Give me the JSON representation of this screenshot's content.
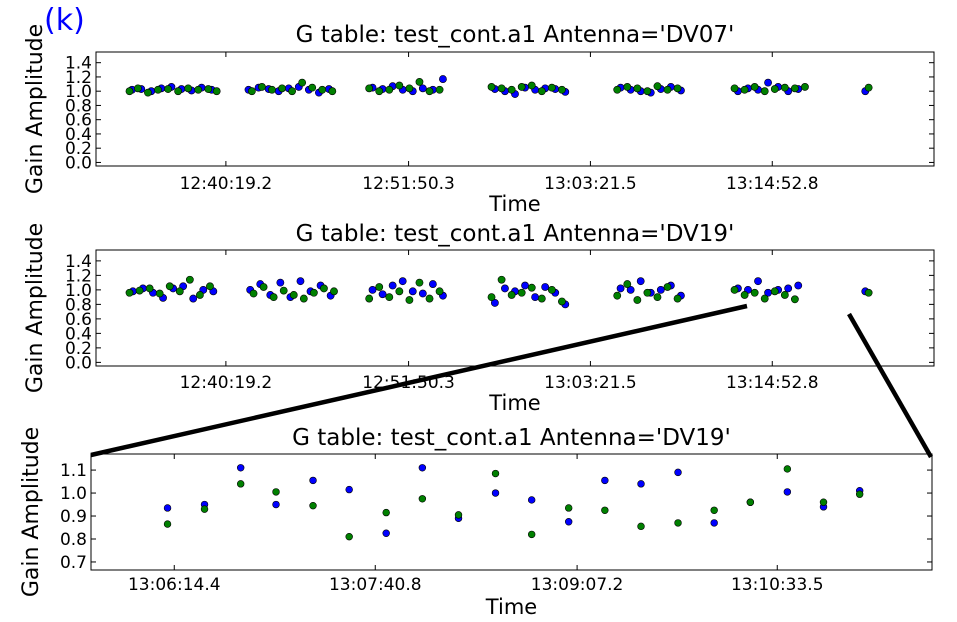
{
  "panel_label": "(k)",
  "colors": {
    "series_a": "#0000ff",
    "series_b": "#008000",
    "axes": "#000000"
  },
  "chart_data": [
    {
      "type": "scatter",
      "title": "G table: test_cont.a1       Antenna='DV07'",
      "xlabel": "Time",
      "ylabel": "Gain Amplitude",
      "xlim": [
        0,
        100
      ],
      "ylim": [
        -0.05,
        1.55
      ],
      "yticks": [
        "0.0",
        "0.2",
        "0.4",
        "0.6",
        "0.8",
        "1.0",
        "1.2",
        "1.4"
      ],
      "ytick_values": [
        0,
        0.2,
        0.4,
        0.6,
        0.8,
        1.0,
        1.2,
        1.4
      ],
      "xticks": [
        {
          "label": "12:40:19.2",
          "x": 15.5
        },
        {
          "label": "12:51:50.3",
          "x": 37.3
        },
        {
          "label": "13:03:21.5",
          "x": 59.0
        },
        {
          "label": "13:14:52.8",
          "x": 80.7
        }
      ],
      "grid": false,
      "series": [
        {
          "values": [
            [
              4.3,
              1.02
            ],
            [
              5.4,
              1.03
            ],
            [
              6.6,
              1.0
            ],
            [
              7.8,
              1.04
            ],
            [
              9.0,
              1.06
            ],
            [
              10.2,
              1.03
            ],
            [
              11.4,
              1.01
            ],
            [
              12.6,
              1.05
            ],
            [
              13.8,
              1.02
            ],
            [
              18.2,
              1.02
            ],
            [
              19.4,
              1.05
            ],
            [
              20.6,
              1.03
            ],
            [
              21.8,
              1.0
            ],
            [
              23.0,
              1.04
            ],
            [
              24.2,
              1.06
            ],
            [
              25.4,
              1.02
            ],
            [
              26.6,
              0.98
            ],
            [
              27.8,
              1.03
            ],
            [
              33.0,
              1.05
            ],
            [
              34.2,
              1.03
            ],
            [
              35.4,
              1.07
            ],
            [
              36.6,
              1.02
            ],
            [
              37.8,
              1.0
            ],
            [
              39.0,
              1.04
            ],
            [
              40.2,
              1.02
            ],
            [
              41.4,
              1.17
            ],
            [
              47.6,
              1.03
            ],
            [
              48.8,
              1.0
            ],
            [
              50.0,
              0.96
            ],
            [
              51.2,
              1.05
            ],
            [
              52.4,
              1.02
            ],
            [
              53.6,
              1.04
            ],
            [
              54.8,
              1.03
            ],
            [
              56.0,
              0.99
            ],
            [
              62.6,
              1.05
            ],
            [
              63.8,
              1.02
            ],
            [
              65.0,
              1.0
            ],
            [
              66.2,
              0.98
            ],
            [
              67.4,
              1.03
            ],
            [
              68.6,
              1.06
            ],
            [
              69.8,
              1.01
            ],
            [
              76.6,
              1.0
            ],
            [
              77.8,
              1.04
            ],
            [
              79.0,
              1.02
            ],
            [
              80.2,
              1.12
            ],
            [
              81.4,
              1.06
            ],
            [
              82.6,
              1.0
            ],
            [
              83.8,
              1.03
            ],
            [
              91.8,
              1.0
            ]
          ]
        },
        {
          "values": [
            [
              4.0,
              1.0
            ],
            [
              5.0,
              1.04
            ],
            [
              6.2,
              0.98
            ],
            [
              7.4,
              1.02
            ],
            [
              8.6,
              1.03
            ],
            [
              9.8,
              1.0
            ],
            [
              11.0,
              1.04
            ],
            [
              12.2,
              1.02
            ],
            [
              13.4,
              1.03
            ],
            [
              14.4,
              1.0
            ],
            [
              18.6,
              1.0
            ],
            [
              19.8,
              1.06
            ],
            [
              21.0,
              1.02
            ],
            [
              22.2,
              1.04
            ],
            [
              23.4,
              1.0
            ],
            [
              24.6,
              1.12
            ],
            [
              25.8,
              1.05
            ],
            [
              27.0,
              1.02
            ],
            [
              28.2,
              1.0
            ],
            [
              32.6,
              1.04
            ],
            [
              33.8,
              1.0
            ],
            [
              35.0,
              1.02
            ],
            [
              36.2,
              1.08
            ],
            [
              37.4,
              1.04
            ],
            [
              38.6,
              1.13
            ],
            [
              39.8,
              1.0
            ],
            [
              41.0,
              1.02
            ],
            [
              47.2,
              1.06
            ],
            [
              48.4,
              1.04
            ],
            [
              49.6,
              1.02
            ],
            [
              50.8,
              1.06
            ],
            [
              52.0,
              1.08
            ],
            [
              53.2,
              1.0
            ],
            [
              54.4,
              1.05
            ],
            [
              55.6,
              1.02
            ],
            [
              62.2,
              1.02
            ],
            [
              63.4,
              1.06
            ],
            [
              64.6,
              1.04
            ],
            [
              65.8,
              1.0
            ],
            [
              67.0,
              1.07
            ],
            [
              68.2,
              1.02
            ],
            [
              69.4,
              1.04
            ],
            [
              76.2,
              1.04
            ],
            [
              77.4,
              1.02
            ],
            [
              78.6,
              1.06
            ],
            [
              79.8,
              1.0
            ],
            [
              81.0,
              1.03
            ],
            [
              82.2,
              1.05
            ],
            [
              83.4,
              1.04
            ],
            [
              84.6,
              1.06
            ],
            [
              92.2,
              1.05
            ]
          ]
        }
      ]
    },
    {
      "type": "scatter",
      "title": "G table: test_cont.a1       Antenna='DV19'",
      "xlabel": "Time",
      "ylabel": "Gain Amplitude",
      "xlim": [
        0,
        100
      ],
      "ylim": [
        -0.05,
        1.55
      ],
      "yticks": [
        "0.0",
        "0.2",
        "0.4",
        "0.6",
        "0.8",
        "1.0",
        "1.2",
        "1.4"
      ],
      "ytick_values": [
        0,
        0.2,
        0.4,
        0.6,
        0.8,
        1.0,
        1.2,
        1.4
      ],
      "xticks": [
        {
          "label": "12:40:19.2",
          "x": 15.5
        },
        {
          "label": "12:51:50.3",
          "x": 37.3
        },
        {
          "label": "13:03:21.5",
          "x": 59.0
        },
        {
          "label": "13:14:52.8",
          "x": 80.7
        }
      ],
      "grid": false,
      "series": [
        {
          "values": [
            [
              4.4,
              0.98
            ],
            [
              5.6,
              1.02
            ],
            [
              6.8,
              0.96
            ],
            [
              8.0,
              0.89
            ],
            [
              9.2,
              1.02
            ],
            [
              10.4,
              1.05
            ],
            [
              11.6,
              0.88
            ],
            [
              12.8,
              1.0
            ],
            [
              14.0,
              0.98
            ],
            [
              18.4,
              1.0
            ],
            [
              19.6,
              1.08
            ],
            [
              20.8,
              0.93
            ],
            [
              22.0,
              1.1
            ],
            [
              23.2,
              0.9
            ],
            [
              24.4,
              1.12
            ],
            [
              25.6,
              0.98
            ],
            [
              26.8,
              1.06
            ],
            [
              28.0,
              0.92
            ],
            [
              33.0,
              1.0
            ],
            [
              34.2,
              0.94
            ],
            [
              35.4,
              1.06
            ],
            [
              36.6,
              1.12
            ],
            [
              37.8,
              0.98
            ],
            [
              39.0,
              0.95
            ],
            [
              40.2,
              1.08
            ],
            [
              41.4,
              0.92
            ],
            [
              47.6,
              0.82
            ],
            [
              48.8,
              1.02
            ],
            [
              50.0,
              0.98
            ],
            [
              51.2,
              1.06
            ],
            [
              52.4,
              0.9
            ],
            [
              53.6,
              1.04
            ],
            [
              54.8,
              0.96
            ],
            [
              56.0,
              0.8
            ],
            [
              62.6,
              1.02
            ],
            [
              63.8,
              1.0
            ],
            [
              65.0,
              1.12
            ],
            [
              66.2,
              0.96
            ],
            [
              67.4,
              1.0
            ],
            [
              68.6,
              1.06
            ],
            [
              69.8,
              0.92
            ],
            [
              76.6,
              1.02
            ],
            [
              77.8,
              1.0
            ],
            [
              79.0,
              1.12
            ],
            [
              80.2,
              0.96
            ],
            [
              81.4,
              1.0
            ],
            [
              82.6,
              1.02
            ],
            [
              83.8,
              1.06
            ],
            [
              91.8,
              0.98
            ]
          ]
        },
        {
          "values": [
            [
              4.0,
              0.96
            ],
            [
              5.2,
              0.99
            ],
            [
              6.4,
              1.02
            ],
            [
              7.6,
              0.95
            ],
            [
              8.8,
              1.05
            ],
            [
              10.0,
              0.98
            ],
            [
              11.2,
              1.14
            ],
            [
              12.4,
              0.93
            ],
            [
              13.6,
              1.05
            ],
            [
              18.8,
              0.95
            ],
            [
              20.0,
              1.04
            ],
            [
              21.2,
              0.9
            ],
            [
              22.4,
              0.99
            ],
            [
              23.6,
              0.93
            ],
            [
              24.8,
              0.88
            ],
            [
              26.0,
              0.96
            ],
            [
              27.2,
              1.02
            ],
            [
              28.4,
              0.98
            ],
            [
              32.6,
              0.88
            ],
            [
              33.8,
              1.04
            ],
            [
              35.0,
              0.9
            ],
            [
              36.2,
              0.98
            ],
            [
              37.4,
              0.86
            ],
            [
              38.6,
              1.1
            ],
            [
              39.8,
              0.88
            ],
            [
              41.0,
              0.98
            ],
            [
              47.2,
              0.9
            ],
            [
              48.4,
              1.14
            ],
            [
              49.6,
              0.93
            ],
            [
              50.8,
              0.96
            ],
            [
              52.0,
              1.03
            ],
            [
              53.2,
              0.88
            ],
            [
              54.4,
              1.0
            ],
            [
              55.6,
              0.84
            ],
            [
              62.2,
              0.92
            ],
            [
              63.4,
              1.08
            ],
            [
              64.6,
              0.86
            ],
            [
              65.8,
              0.96
            ],
            [
              67.0,
              0.9
            ],
            [
              68.2,
              1.04
            ],
            [
              69.4,
              0.88
            ],
            [
              76.2,
              1.0
            ],
            [
              77.4,
              0.93
            ],
            [
              78.6,
              0.96
            ],
            [
              79.8,
              0.88
            ],
            [
              81.0,
              0.98
            ],
            [
              82.2,
              0.93
            ],
            [
              83.4,
              0.87
            ],
            [
              92.2,
              0.96
            ]
          ]
        }
      ]
    },
    {
      "type": "scatter",
      "title": "G table: test_cont.a1       Antenna='DV19'",
      "xlabel": "Time",
      "ylabel": "Gain Amplitude",
      "xlim": [
        0,
        100
      ],
      "ylim": [
        0.665,
        1.17
      ],
      "yticks": [
        "0.7",
        "0.8",
        "0.9",
        "1.0",
        "1.1"
      ],
      "ytick_values": [
        0.7,
        0.8,
        0.9,
        1.0,
        1.1
      ],
      "xticks": [
        {
          "label": "13:06:14.4",
          "x": 9.9
        },
        {
          "label": "13:07:40.8",
          "x": 33.8
        },
        {
          "label": "13:09:07.2",
          "x": 57.8
        },
        {
          "label": "13:10:33.5",
          "x": 81.6
        }
      ],
      "grid": false,
      "series": [
        {
          "values": [
            [
              9.1,
              0.935
            ],
            [
              13.5,
              0.95
            ],
            [
              17.8,
              1.11
            ],
            [
              22.0,
              0.95
            ],
            [
              26.4,
              1.055
            ],
            [
              30.7,
              1.015
            ],
            [
              35.1,
              0.825
            ],
            [
              39.4,
              1.11
            ],
            [
              43.7,
              0.89
            ],
            [
              48.1,
              1.0
            ],
            [
              52.4,
              0.97
            ],
            [
              56.8,
              0.875
            ],
            [
              61.1,
              1.055
            ],
            [
              65.4,
              1.04
            ],
            [
              69.8,
              1.09
            ],
            [
              74.1,
              0.87
            ],
            [
              78.4,
              0.96
            ],
            [
              82.8,
              1.005
            ],
            [
              87.1,
              0.94
            ],
            [
              91.4,
              1.01
            ]
          ]
        },
        {
          "values": [
            [
              9.1,
              0.865
            ],
            [
              13.5,
              0.93
            ],
            [
              17.8,
              1.04
            ],
            [
              22.0,
              1.005
            ],
            [
              26.4,
              0.945
            ],
            [
              30.7,
              0.81
            ],
            [
              35.1,
              0.915
            ],
            [
              39.4,
              0.975
            ],
            [
              43.7,
              0.905
            ],
            [
              48.1,
              1.085
            ],
            [
              52.4,
              0.82
            ],
            [
              56.8,
              0.935
            ],
            [
              61.1,
              0.925
            ],
            [
              65.4,
              0.855
            ],
            [
              69.8,
              0.87
            ],
            [
              74.1,
              0.925
            ],
            [
              78.4,
              0.96
            ],
            [
              82.8,
              1.105
            ],
            [
              87.1,
              0.96
            ],
            [
              91.4,
              0.995
            ]
          ]
        }
      ]
    }
  ]
}
